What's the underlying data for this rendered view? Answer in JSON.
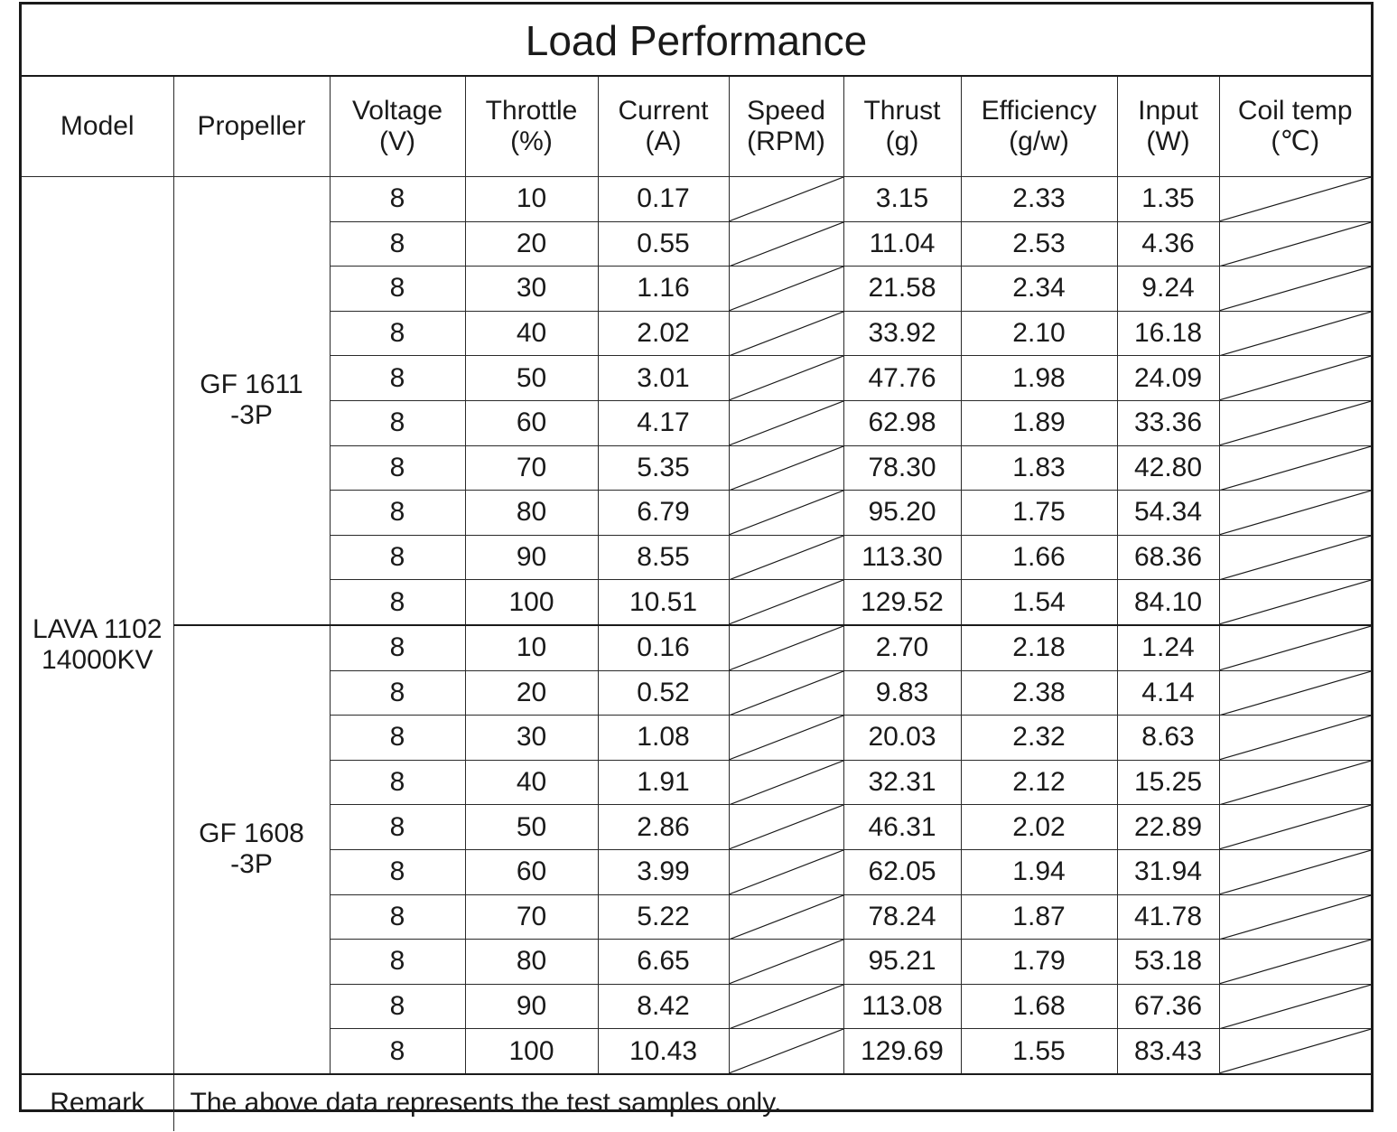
{
  "title": "Load Performance",
  "headers": {
    "model": "Model",
    "propeller": "Propeller",
    "voltage": [
      "Voltage",
      "(V)"
    ],
    "throttle": [
      "Throttle",
      "(%)"
    ],
    "current": [
      "Current",
      "(A)"
    ],
    "speed": [
      "Speed",
      "(RPM)"
    ],
    "thrust": [
      "Thrust",
      "(g)"
    ],
    "efficiency": [
      "Efficiency",
      "(g/w)"
    ],
    "input": [
      "Input",
      "(W)"
    ],
    "coil_temp": [
      "Coil temp",
      "(℃)"
    ]
  },
  "model": [
    "LAVA 1102",
    "14000KV"
  ],
  "groups": [
    {
      "propeller": [
        "GF 1611",
        "-3P"
      ],
      "rows": [
        {
          "voltage": "8",
          "throttle": "10",
          "current": "0.17",
          "thrust": "3.15",
          "efficiency": "2.33",
          "input": "1.35"
        },
        {
          "voltage": "8",
          "throttle": "20",
          "current": "0.55",
          "thrust": "11.04",
          "efficiency": "2.53",
          "input": "4.36"
        },
        {
          "voltage": "8",
          "throttle": "30",
          "current": "1.16",
          "thrust": "21.58",
          "efficiency": "2.34",
          "input": "9.24"
        },
        {
          "voltage": "8",
          "throttle": "40",
          "current": "2.02",
          "thrust": "33.92",
          "efficiency": "2.10",
          "input": "16.18"
        },
        {
          "voltage": "8",
          "throttle": "50",
          "current": "3.01",
          "thrust": "47.76",
          "efficiency": "1.98",
          "input": "24.09"
        },
        {
          "voltage": "8",
          "throttle": "60",
          "current": "4.17",
          "thrust": "62.98",
          "efficiency": "1.89",
          "input": "33.36"
        },
        {
          "voltage": "8",
          "throttle": "70",
          "current": "5.35",
          "thrust": "78.30",
          "efficiency": "1.83",
          "input": "42.80"
        },
        {
          "voltage": "8",
          "throttle": "80",
          "current": "6.79",
          "thrust": "95.20",
          "efficiency": "1.75",
          "input": "54.34"
        },
        {
          "voltage": "8",
          "throttle": "90",
          "current": "8.55",
          "thrust": "113.30",
          "efficiency": "1.66",
          "input": "68.36"
        },
        {
          "voltage": "8",
          "throttle": "100",
          "current": "10.51",
          "thrust": "129.52",
          "efficiency": "1.54",
          "input": "84.10"
        }
      ]
    },
    {
      "propeller": [
        "GF 1608",
        "-3P"
      ],
      "rows": [
        {
          "voltage": "8",
          "throttle": "10",
          "current": "0.16",
          "thrust": "2.70",
          "efficiency": "2.18",
          "input": "1.24"
        },
        {
          "voltage": "8",
          "throttle": "20",
          "current": "0.52",
          "thrust": "9.83",
          "efficiency": "2.38",
          "input": "4.14"
        },
        {
          "voltage": "8",
          "throttle": "30",
          "current": "1.08",
          "thrust": "20.03",
          "efficiency": "2.32",
          "input": "8.63"
        },
        {
          "voltage": "8",
          "throttle": "40",
          "current": "1.91",
          "thrust": "32.31",
          "efficiency": "2.12",
          "input": "15.25"
        },
        {
          "voltage": "8",
          "throttle": "50",
          "current": "2.86",
          "thrust": "46.31",
          "efficiency": "2.02",
          "input": "22.89"
        },
        {
          "voltage": "8",
          "throttle": "60",
          "current": "3.99",
          "thrust": "62.05",
          "efficiency": "1.94",
          "input": "31.94"
        },
        {
          "voltage": "8",
          "throttle": "70",
          "current": "5.22",
          "thrust": "78.24",
          "efficiency": "1.87",
          "input": "41.78"
        },
        {
          "voltage": "8",
          "throttle": "80",
          "current": "6.65",
          "thrust": "95.21",
          "efficiency": "1.79",
          "input": "53.18"
        },
        {
          "voltage": "8",
          "throttle": "90",
          "current": "8.42",
          "thrust": "113.08",
          "efficiency": "1.68",
          "input": "67.36"
        },
        {
          "voltage": "8",
          "throttle": "100",
          "current": "10.43",
          "thrust": "129.69",
          "efficiency": "1.55",
          "input": "83.43"
        }
      ]
    }
  ],
  "remark": {
    "label": "Remark",
    "text": "The above data represents the test samples only."
  }
}
